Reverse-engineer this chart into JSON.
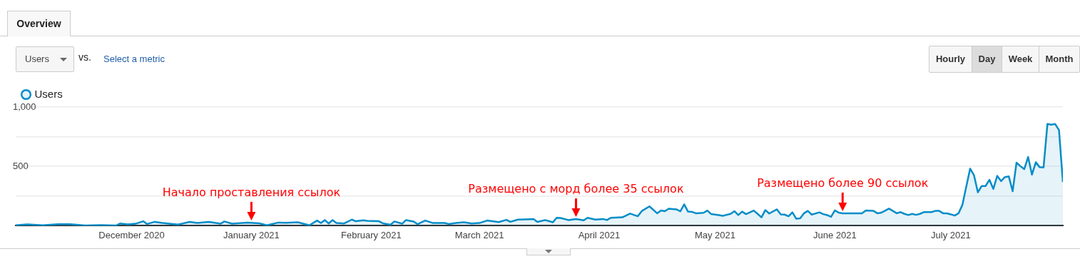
{
  "chart_data": {
    "type": "area",
    "legend": "top left",
    "grid": "y",
    "marker": "none",
    "line_style": "solid",
    "x": [
      "2020-11-01",
      "2020-11-04",
      "2020-11-08",
      "2020-11-12",
      "2020-11-15",
      "2020-11-19",
      "2020-11-23",
      "2020-11-27",
      "2020-11-28",
      "2020-11-30",
      "2020-12-02",
      "2020-12-04",
      "2020-12-05",
      "2020-12-07",
      "2020-12-09",
      "2020-12-13",
      "2020-12-16",
      "2020-12-18",
      "2020-12-21",
      "2020-12-24",
      "2020-12-25",
      "2020-12-27",
      "2020-12-31",
      "2021-01-03",
      "2021-01-05",
      "2021-01-08",
      "2021-01-10",
      "2021-01-13",
      "2021-01-16",
      "2021-01-18",
      "2021-01-19",
      "2021-01-20",
      "2021-01-21",
      "2021-01-22",
      "2021-01-23",
      "2021-01-25",
      "2021-01-27",
      "2021-01-28",
      "2021-01-30",
      "2021-01-31",
      "2021-02-03",
      "2021-02-04",
      "2021-02-06",
      "2021-02-07",
      "2021-02-09",
      "2021-02-10",
      "2021-02-12",
      "2021-02-13",
      "2021-02-15",
      "2021-02-17",
      "2021-02-20",
      "2021-02-21",
      "2021-02-23",
      "2021-02-25",
      "2021-02-27",
      "2021-03-01",
      "2021-03-03",
      "2021-03-06",
      "2021-03-08",
      "2021-03-09",
      "2021-03-11",
      "2021-03-13",
      "2021-03-15",
      "2021-03-16",
      "2021-03-18",
      "2021-03-20",
      "2021-03-21",
      "2021-03-22",
      "2021-03-24",
      "2021-03-26",
      "2021-03-28",
      "2021-03-29",
      "2021-03-31",
      "2021-04-02",
      "2021-04-03",
      "2021-04-04",
      "2021-04-07",
      "2021-04-09",
      "2021-04-11",
      "2021-04-12",
      "2021-04-14",
      "2021-04-16",
      "2021-04-17",
      "2021-04-18",
      "2021-04-19",
      "2021-04-21",
      "2021-04-22",
      "2021-04-23",
      "2021-04-24",
      "2021-04-25",
      "2021-04-26",
      "2021-04-28",
      "2021-04-29",
      "2021-04-30",
      "2021-05-02",
      "2021-05-03",
      "2021-05-05",
      "2021-05-06",
      "2021-05-07",
      "2021-05-08",
      "2021-05-09",
      "2021-05-11",
      "2021-05-12",
      "2021-05-13",
      "2021-05-14",
      "2021-05-15",
      "2021-05-17",
      "2021-05-18",
      "2021-05-19",
      "2021-05-20",
      "2021-05-21",
      "2021-05-22",
      "2021-05-23",
      "2021-05-24",
      "2021-05-25",
      "2021-05-26",
      "2021-05-28",
      "2021-05-29",
      "2021-05-30",
      "2021-05-31",
      "2021-06-01",
      "2021-06-02",
      "2021-06-03",
      "2021-06-05",
      "2021-06-07",
      "2021-06-08",
      "2021-06-09",
      "2021-06-11",
      "2021-06-12",
      "2021-06-13",
      "2021-06-15",
      "2021-06-16",
      "2021-06-17",
      "2021-06-18",
      "2021-06-19",
      "2021-06-20",
      "2021-06-21",
      "2021-06-22",
      "2021-06-23",
      "2021-06-24",
      "2021-06-26",
      "2021-06-27",
      "2021-06-28",
      "2021-06-29",
      "2021-06-30",
      "2021-07-01",
      "2021-07-02",
      "2021-07-03",
      "2021-07-04",
      "2021-07-05",
      "2021-07-06",
      "2021-07-07",
      "2021-07-08",
      "2021-07-09",
      "2021-07-10",
      "2021-07-11",
      "2021-07-12",
      "2021-07-13",
      "2021-07-14",
      "2021-07-15",
      "2021-07-16",
      "2021-07-17",
      "2021-07-18",
      "2021-07-19",
      "2021-07-20",
      "2021-07-21",
      "2021-07-22",
      "2021-07-23",
      "2021-07-24",
      "2021-07-25",
      "2021-07-26",
      "2021-07-27",
      "2021-07-28",
      "2021-07-29",
      "2021-07-30"
    ],
    "series": [
      {
        "name": "Users",
        "color": "#058dc7",
        "values": [
          4,
          12,
          4,
          13,
          13,
          2,
          6,
          2,
          19,
          12,
          17,
          38,
          15,
          33,
          23,
          10,
          33,
          23,
          33,
          17,
          36,
          17,
          27,
          21,
          4,
          27,
          25,
          29,
          4,
          44,
          23,
          48,
          19,
          48,
          23,
          19,
          52,
          38,
          46,
          42,
          38,
          21,
          8,
          36,
          17,
          48,
          36,
          13,
          44,
          23,
          23,
          15,
          23,
          29,
          19,
          23,
          44,
          31,
          50,
          33,
          52,
          54,
          57,
          33,
          48,
          29,
          67,
          65,
          48,
          56,
          46,
          67,
          52,
          57,
          48,
          67,
          71,
          102,
          80,
          123,
          163,
          105,
          128,
          123,
          144,
          138,
          121,
          180,
          119,
          117,
          105,
          109,
          128,
          98,
          90,
          84,
          100,
          123,
          90,
          119,
          98,
          128,
          100,
          71,
          132,
          103,
          138,
          96,
          94,
          80,
          113,
          59,
          63,
          105,
          125,
          94,
          113,
          98,
          90,
          75,
          130,
          110,
          105,
          105,
          105,
          105,
          128,
          125,
          105,
          110,
          144,
          125,
          105,
          115,
          100,
          90,
          100,
          92,
          100,
          115,
          115,
          125,
          125,
          105,
          105,
          96,
          86,
          105,
          176,
          330,
          481,
          425,
          282,
          335,
          335,
          387,
          310,
          420,
          376,
          410,
          416,
          291,
          531,
          502,
          477,
          579,
          431,
          535,
          493,
          491,
          857,
          851,
          857,
          805,
          368
        ]
      }
    ],
    "xlim": [
      "2020-11-01",
      "2021-07-30"
    ],
    "xticks": [
      {
        "value": "2020-12-01",
        "label": "December 2020"
      },
      {
        "value": "2021-01-01",
        "label": "January 2021"
      },
      {
        "value": "2021-02-01",
        "label": "February 2021"
      },
      {
        "value": "2021-03-01",
        "label": "March 2021"
      },
      {
        "value": "2021-04-01",
        "label": "April 2021"
      },
      {
        "value": "2021-05-01",
        "label": "May 2021"
      },
      {
        "value": "2021-06-01",
        "label": "June 2021"
      },
      {
        "value": "2021-07-01",
        "label": "July 2021"
      }
    ],
    "ylim": [
      0,
      1000
    ],
    "yticks": [
      {
        "value": 0,
        "label": null
      },
      {
        "value": 250,
        "label": null
      },
      {
        "value": 500,
        "label": "500"
      },
      {
        "value": 750,
        "label": null
      },
      {
        "value": 1000,
        "label": "1,000"
      }
    ],
    "annotations": [
      {
        "text": "Начало проставления ссылок",
        "x": "2021-01-01",
        "y": 27
      },
      {
        "text": "Размещено с морд более 35 ссылок",
        "x": "2021-03-26",
        "y": 56
      },
      {
        "text": "Размещено более 90 ссылок",
        "x": "2021-06-03",
        "y": 105
      },
      "Overview",
      "Users",
      "vs.",
      "Select a metric",
      "Hourly",
      "Day",
      "Week",
      "Month"
    ]
  }
}
